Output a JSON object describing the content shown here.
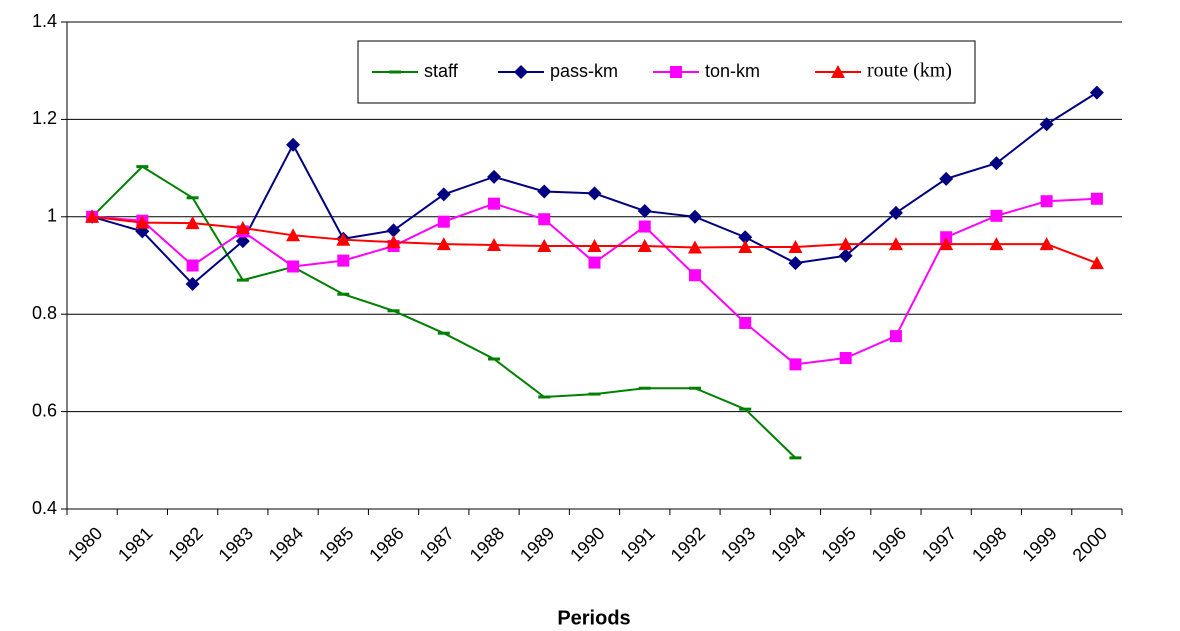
{
  "chart_data": {
    "type": "line",
    "x_label": "Periods",
    "categories": [
      "1980",
      "1981",
      "1982",
      "1983",
      "1984",
      "1985",
      "1986",
      "1987",
      "1988",
      "1989",
      "1990",
      "1991",
      "1992",
      "1993",
      "1994",
      "1995",
      "1996",
      "1997",
      "1998",
      "1999",
      "2000"
    ],
    "series": [
      {
        "name": "staff",
        "color": "#008000",
        "marker": "dash",
        "values": [
          1.0,
          1.103,
          1.039,
          0.87,
          0.897,
          0.841,
          0.807,
          0.761,
          0.708,
          0.63,
          0.636,
          0.648,
          0.648,
          0.605,
          0.505,
          null,
          null,
          null,
          null,
          null,
          null
        ]
      },
      {
        "name": "pass-km",
        "color": "#000080",
        "marker": "diamond",
        "values": [
          1.0,
          0.97,
          0.862,
          0.95,
          1.148,
          0.955,
          0.972,
          1.046,
          1.082,
          1.052,
          1.048,
          1.012,
          1.0,
          0.958,
          0.905,
          0.92,
          1.008,
          1.078,
          1.11,
          1.19,
          1.255
        ]
      },
      {
        "name": "ton-km",
        "color": "#ff00ff",
        "marker": "square",
        "values": [
          1.0,
          0.992,
          0.9,
          0.97,
          0.898,
          0.91,
          0.94,
          0.99,
          1.027,
          0.995,
          0.906,
          0.98,
          0.88,
          0.782,
          0.697,
          0.71,
          0.755,
          0.958,
          1.002,
          1.032,
          1.037
        ]
      },
      {
        "name": "route (km)",
        "color": "#ff0000",
        "marker": "triangle",
        "values": [
          1.0,
          0.988,
          0.987,
          0.977,
          0.962,
          0.953,
          0.948,
          0.944,
          0.942,
          0.94,
          0.94,
          0.94,
          0.937,
          0.938,
          0.938,
          0.944,
          0.944,
          0.944,
          0.944,
          0.944,
          0.905
        ]
      }
    ],
    "ylim": [
      0.4,
      1.4
    ],
    "yticks": [
      0.4,
      0.6,
      0.8,
      1,
      1.2,
      1.4
    ],
    "grid": true,
    "legend": "top"
  }
}
